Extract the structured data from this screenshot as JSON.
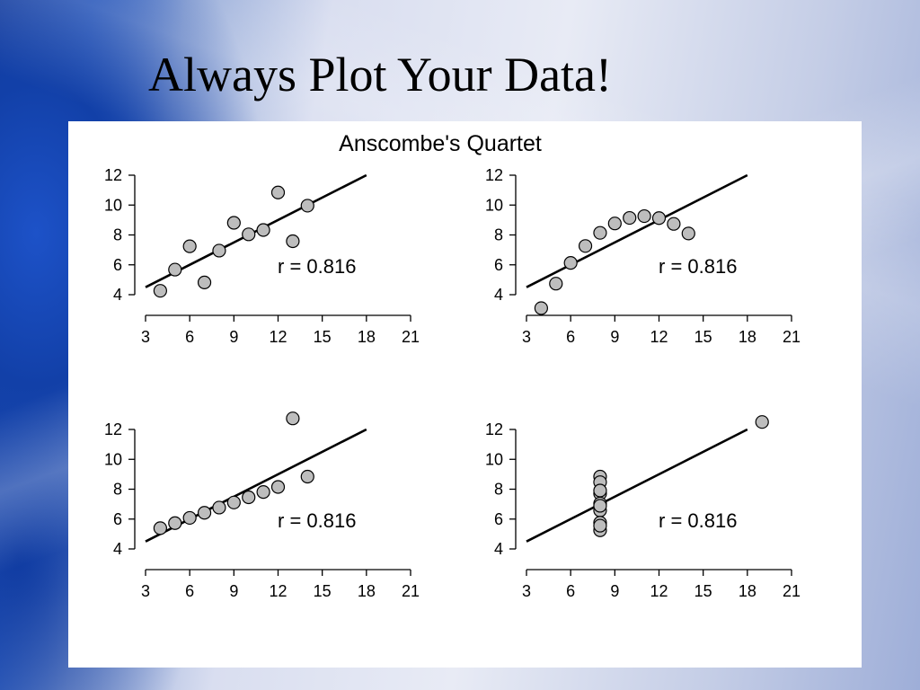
{
  "slide": {
    "title": "Always Plot Your Data!"
  },
  "chart_data": {
    "type": "scatter",
    "title": "Anscombe's Quartet",
    "panels": [
      {
        "annotation": "r = 0.816",
        "xlim": [
          3,
          21
        ],
        "ylim": [
          4,
          12
        ],
        "x_ticks": [
          3,
          6,
          9,
          12,
          15,
          18,
          21
        ],
        "y_ticks": [
          4,
          6,
          8,
          10,
          12
        ],
        "fit_line": {
          "intercept": 3.0,
          "slope": 0.5
        },
        "points": [
          [
            10,
            8.04
          ],
          [
            8,
            6.95
          ],
          [
            13,
            7.58
          ],
          [
            9,
            8.81
          ],
          [
            11,
            8.33
          ],
          [
            14,
            9.96
          ],
          [
            6,
            7.24
          ],
          [
            4,
            4.26
          ],
          [
            12,
            10.84
          ],
          [
            7,
            4.82
          ],
          [
            5,
            5.68
          ]
        ]
      },
      {
        "annotation": "r = 0.816",
        "xlim": [
          3,
          21
        ],
        "ylim": [
          4,
          12
        ],
        "x_ticks": [
          3,
          6,
          9,
          12,
          15,
          18,
          21
        ],
        "y_ticks": [
          4,
          6,
          8,
          10,
          12
        ],
        "fit_line": {
          "intercept": 3.0,
          "slope": 0.5
        },
        "points": [
          [
            10,
            9.14
          ],
          [
            8,
            8.14
          ],
          [
            13,
            8.74
          ],
          [
            9,
            8.77
          ],
          [
            11,
            9.26
          ],
          [
            14,
            8.1
          ],
          [
            6,
            6.13
          ],
          [
            4,
            3.1
          ],
          [
            12,
            9.13
          ],
          [
            7,
            7.26
          ],
          [
            5,
            4.74
          ]
        ]
      },
      {
        "annotation": "r = 0.816",
        "xlim": [
          3,
          21
        ],
        "ylim": [
          4,
          12
        ],
        "x_ticks": [
          3,
          6,
          9,
          12,
          15,
          18,
          21
        ],
        "y_ticks": [
          4,
          6,
          8,
          10,
          12
        ],
        "fit_line": {
          "intercept": 3.0,
          "slope": 0.5
        },
        "points": [
          [
            10,
            7.46
          ],
          [
            8,
            6.77
          ],
          [
            13,
            12.74
          ],
          [
            9,
            7.11
          ],
          [
            11,
            7.81
          ],
          [
            14,
            8.84
          ],
          [
            6,
            6.08
          ],
          [
            4,
            5.39
          ],
          [
            12,
            8.15
          ],
          [
            7,
            6.42
          ],
          [
            5,
            5.73
          ]
        ]
      },
      {
        "annotation": "r = 0.816",
        "xlim": [
          3,
          21
        ],
        "ylim": [
          4,
          12
        ],
        "x_ticks": [
          3,
          6,
          9,
          12,
          15,
          18,
          21
        ],
        "y_ticks": [
          4,
          6,
          8,
          10,
          12
        ],
        "fit_line": {
          "intercept": 3.0,
          "slope": 0.5
        },
        "points": [
          [
            8,
            6.58
          ],
          [
            8,
            5.76
          ],
          [
            8,
            7.71
          ],
          [
            8,
            8.84
          ],
          [
            8,
            8.47
          ],
          [
            8,
            7.04
          ],
          [
            8,
            5.25
          ],
          [
            19,
            12.5
          ],
          [
            8,
            5.56
          ],
          [
            8,
            7.91
          ],
          [
            8,
            6.89
          ]
        ]
      }
    ]
  }
}
